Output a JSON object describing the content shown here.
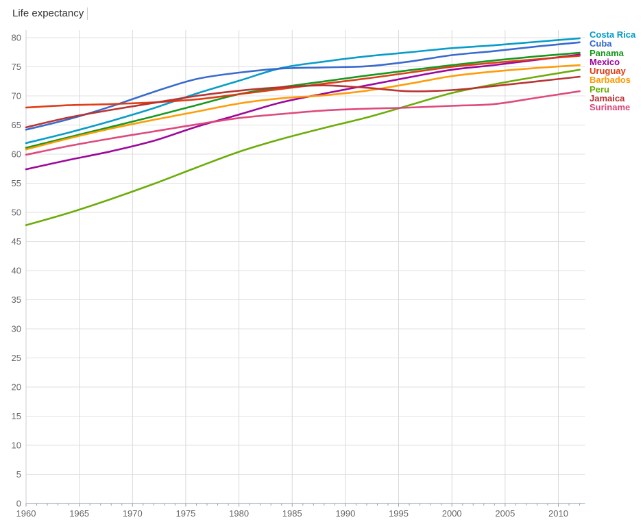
{
  "page": {
    "title": "Life expectancy"
  },
  "chart_data": {
    "type": "line",
    "title": "Life expectancy",
    "xlabel": "",
    "ylabel": "",
    "x": [
      1960,
      1964,
      1968,
      1972,
      1976,
      1980,
      1984,
      1988,
      1992,
      1996,
      2000,
      2004,
      2008,
      2012
    ],
    "series": [
      {
        "name": "Costa Rica",
        "color": "#0099c6",
        "values": [
          61.9,
          63.7,
          65.7,
          67.9,
          70.4,
          72.6,
          74.8,
          75.9,
          76.8,
          77.5,
          78.2,
          78.7,
          79.3,
          79.9
        ]
      },
      {
        "name": "Cuba",
        "color": "#3366cc",
        "values": [
          64.2,
          66.0,
          68.2,
          70.7,
          72.9,
          74.0,
          74.7,
          74.9,
          75.1,
          75.9,
          77.0,
          77.7,
          78.5,
          79.2
        ]
      },
      {
        "name": "Panama",
        "color": "#109618",
        "values": [
          61.1,
          62.9,
          64.7,
          66.5,
          68.4,
          70.3,
          71.5,
          72.5,
          73.5,
          74.4,
          75.3,
          76.1,
          76.8,
          77.4
        ]
      },
      {
        "name": "Mexico",
        "color": "#990099",
        "values": [
          57.4,
          59.0,
          60.5,
          62.3,
          64.7,
          66.8,
          68.9,
          70.4,
          71.8,
          73.2,
          74.5,
          75.3,
          76.2,
          77.1
        ]
      },
      {
        "name": "Uruguay",
        "color": "#dc3912",
        "values": [
          68.0,
          68.4,
          68.6,
          68.9,
          69.4,
          70.3,
          71.2,
          72.1,
          73.0,
          74.0,
          75.0,
          75.7,
          76.3,
          76.9
        ]
      },
      {
        "name": "Barbados",
        "color": "#ff9900",
        "values": [
          60.8,
          62.7,
          64.4,
          65.9,
          67.3,
          68.7,
          69.6,
          70.1,
          70.9,
          72.1,
          73.4,
          74.2,
          74.8,
          75.3
        ]
      },
      {
        "name": "Peru",
        "color": "#66aa00",
        "values": [
          47.8,
          49.9,
          52.3,
          54.9,
          57.7,
          60.4,
          62.6,
          64.5,
          66.3,
          68.4,
          70.5,
          72.0,
          73.3,
          74.5
        ]
      },
      {
        "name": "Jamaica",
        "color": "#b82e2e",
        "values": [
          64.6,
          66.3,
          67.6,
          68.8,
          70.0,
          70.9,
          71.5,
          71.8,
          71.4,
          70.8,
          71.0,
          71.7,
          72.5,
          73.3
        ]
      },
      {
        "name": "Suriname",
        "color": "#dd4477",
        "values": [
          59.9,
          61.4,
          62.7,
          63.9,
          65.1,
          66.2,
          66.9,
          67.5,
          67.8,
          68.0,
          68.3,
          68.6,
          69.7,
          70.8
        ]
      }
    ],
    "x_ticks": [
      1960,
      1965,
      1970,
      1975,
      1980,
      1985,
      1990,
      1995,
      2000,
      2005,
      2010
    ],
    "y_ticks": [
      0,
      5,
      10,
      15,
      20,
      25,
      30,
      35,
      40,
      45,
      50,
      55,
      60,
      65,
      70,
      75,
      80
    ],
    "xlim": [
      1960,
      2012
    ],
    "ylim": [
      0,
      81.3
    ],
    "grid": true,
    "legend_position": "right",
    "colors": {
      "grid_h": "#e2e2e2",
      "grid_v": "#d9d9d9",
      "axis_line": "#b3bdd1",
      "tick": "#9aa0a6",
      "tick_label": "#666666",
      "title": "#333333"
    }
  }
}
